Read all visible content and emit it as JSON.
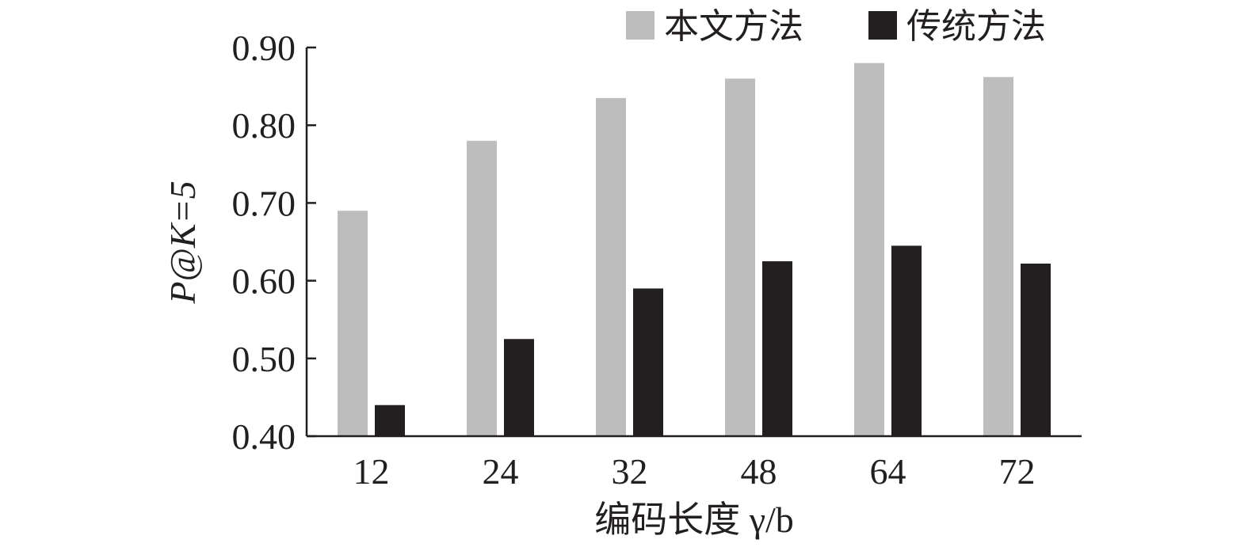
{
  "chart_data": {
    "type": "bar",
    "categories": [
      "12",
      "24",
      "32",
      "48",
      "64",
      "72"
    ],
    "series": [
      {
        "name": "本文方法",
        "values": [
          0.69,
          0.78,
          0.835,
          0.86,
          0.88,
          0.862
        ],
        "color": "#bdbdbd"
      },
      {
        "name": "传统方法",
        "values": [
          0.44,
          0.525,
          0.59,
          0.625,
          0.645,
          0.622
        ],
        "color": "#231f20"
      }
    ],
    "xlabel": "编码长度 γ/b",
    "ylabel": "P@K=5",
    "ylim": [
      0.4,
      0.9
    ],
    "yticks": [
      "0.40",
      "0.50",
      "0.60",
      "0.70",
      "0.80",
      "0.90"
    ],
    "grid": false,
    "legend": "top-right"
  }
}
